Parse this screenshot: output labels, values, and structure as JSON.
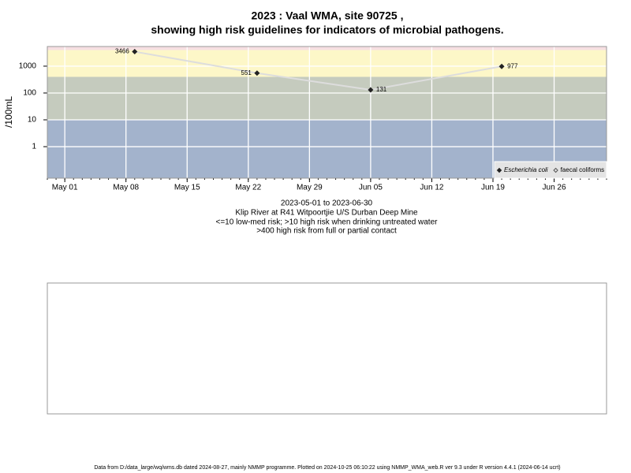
{
  "chart_data": {
    "type": "line",
    "title": "2023 : Vaal WMA, site 90725 ,",
    "subtitle": "showing high risk guidelines for indicators of microbial pathogens.",
    "y_label": "/100mL",
    "notes": [
      "2023-05-01 to 2023-06-30",
      "Klip River at R41 Witpoortjie U/S Durban Deep Mine",
      "<=10 low-med risk; >10 high risk when drinking untreated water",
      ">400 high risk from full or partial contact"
    ],
    "footer": "Data from D:/data_large/wq/wms.db dated 2024-08-27, mainly NMMP programme. Plotted on 2024-10-25 06:10:22 using NMMP_WMA_web.R ver 9.3 under R version 4.4.1 (2024-06-14 ucrt)",
    "x": [
      "2023-05-09",
      "2023-05-23",
      "2023-06-05",
      "2023-06-20"
    ],
    "series": [
      {
        "name": "Escherichia coli",
        "color": "#222222",
        "line_color": "#dddddd",
        "values": [
          3466,
          551,
          131,
          977
        ]
      },
      {
        "name": "faecal coliforms",
        "color": "#555555",
        "values": [
          null,
          null,
          null,
          null
        ]
      }
    ],
    "log_y": true,
    "ylim": [
      0.067,
      5400
    ],
    "yticks": [
      1,
      10,
      100,
      1000
    ],
    "xlim": [
      "2023-04-29",
      "2023-07-02"
    ],
    "xticks": [
      {
        "value": "2023-05-01",
        "label": "May 01"
      },
      {
        "value": "2023-05-08",
        "label": "May 08"
      },
      {
        "value": "2023-05-15",
        "label": "May 15"
      },
      {
        "value": "2023-05-22",
        "label": "May 22"
      },
      {
        "value": "2023-05-29",
        "label": "May 29"
      },
      {
        "value": "2023-06-05",
        "label": "Jun 05"
      },
      {
        "value": "2023-06-12",
        "label": "Jun 12"
      },
      {
        "value": "2023-06-19",
        "label": "Jun 19"
      },
      {
        "value": "2023-06-26",
        "label": "Jun 26"
      }
    ],
    "band_limits": [
      10,
      400,
      4000
    ],
    "band_colors": [
      "#a3b3cc",
      "#c5cbbe",
      "#fdf7c8",
      "#f6dfe2"
    ],
    "grid": true,
    "legend_position": "bottom-right"
  }
}
